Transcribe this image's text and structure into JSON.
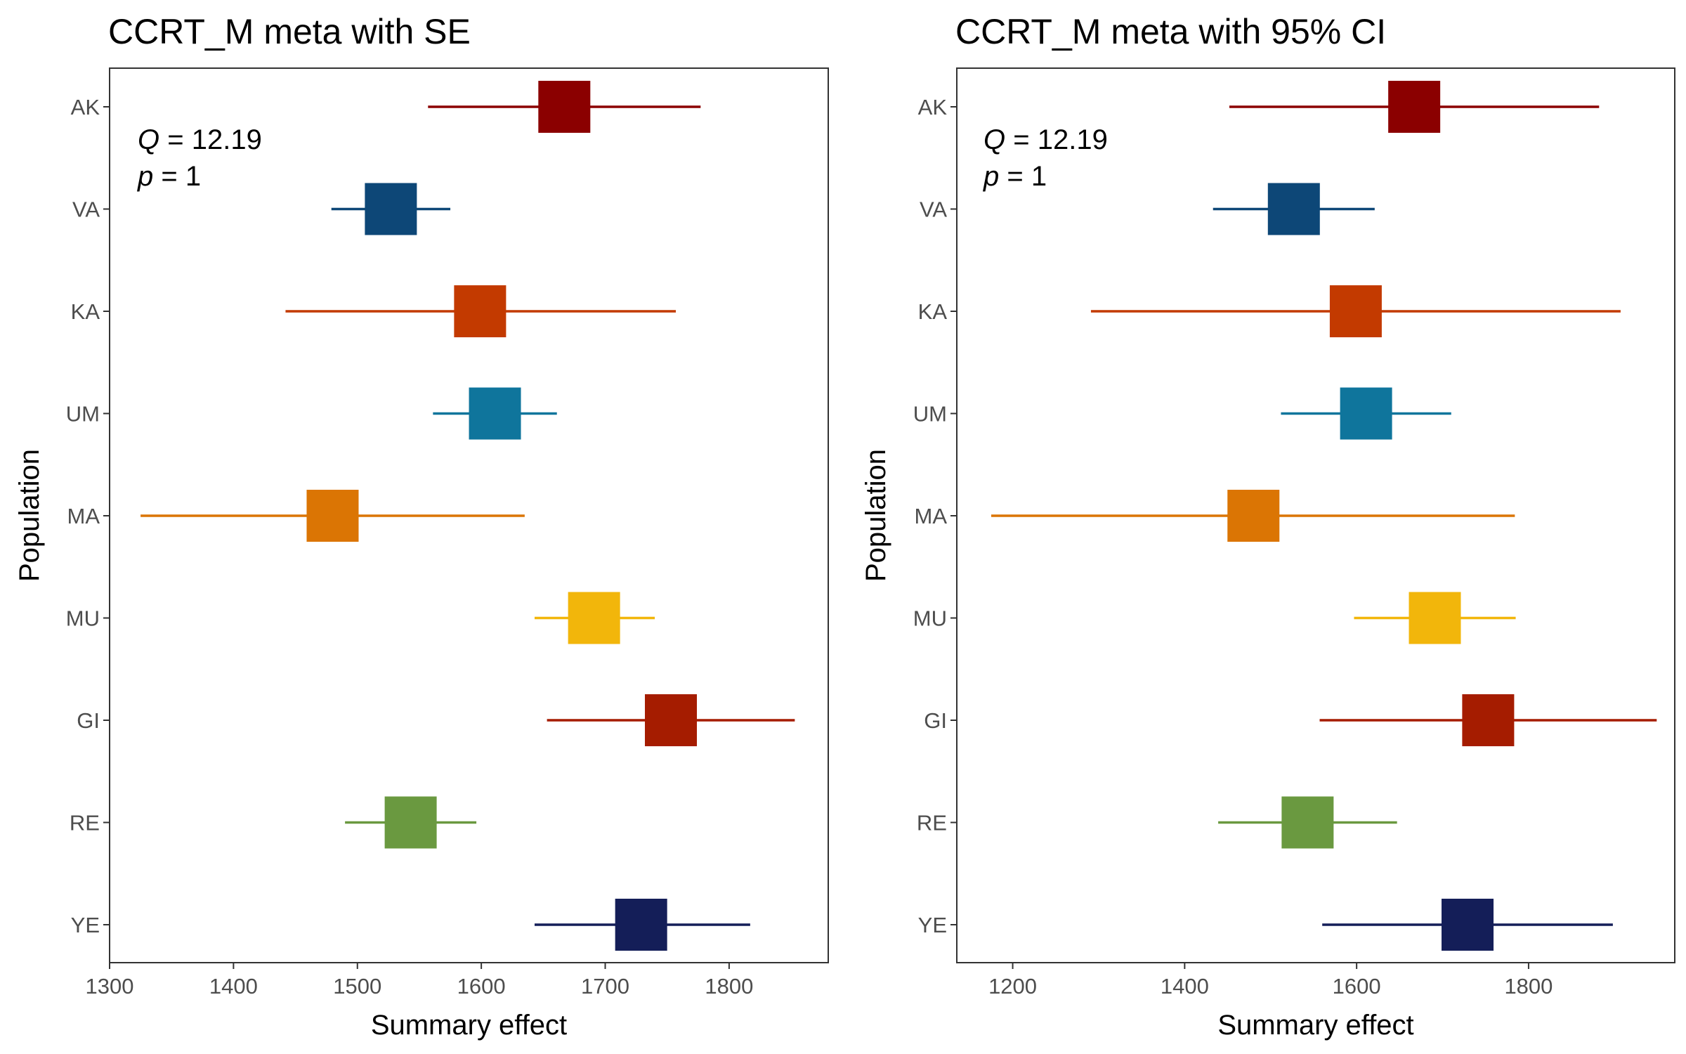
{
  "chart_data": [
    {
      "type": "forest",
      "title": "CCRT_M meta with SE",
      "xlabel": "Summary effect",
      "ylabel": "Population",
      "xlim": [
        1300,
        1880
      ],
      "xticks": [
        1300,
        1400,
        1500,
        1600,
        1700,
        1800
      ],
      "grid": false,
      "annotation": {
        "q_symbol": "Q",
        "q_value": "= 12.19",
        "p_symbol": "p",
        "p_value": "= 1"
      },
      "categories": [
        "AK",
        "VA",
        "KA",
        "UM",
        "MA",
        "MU",
        "GI",
        "RE",
        "YE"
      ],
      "estimate": [
        1667,
        1527,
        1599,
        1611,
        1480,
        1691,
        1753,
        1543,
        1729
      ],
      "lower": [
        1557,
        1479,
        1442,
        1561,
        1325,
        1643,
        1653,
        1490,
        1643
      ],
      "upper": [
        1777,
        1575,
        1757,
        1661,
        1635,
        1740,
        1853,
        1596,
        1817
      ],
      "colors": [
        "#8b0000",
        "#0d4777",
        "#c33a00",
        "#0f759c",
        "#db7504",
        "#f2b60b",
        "#a51c00",
        "#6a9940",
        "#141e58"
      ]
    },
    {
      "type": "forest",
      "title": "CCRT_M meta with 95% CI",
      "xlabel": "Summary effect",
      "ylabel": "Population",
      "xlim": [
        1135,
        1970
      ],
      "xticks": [
        1200,
        1400,
        1600,
        1800
      ],
      "grid": false,
      "annotation": {
        "q_symbol": "Q",
        "q_value": "= 12.19",
        "p_symbol": "p",
        "p_value": "= 1"
      },
      "categories": [
        "AK",
        "VA",
        "KA",
        "UM",
        "MA",
        "MU",
        "GI",
        "RE",
        "YE"
      ],
      "estimate": [
        1667,
        1527,
        1599,
        1611,
        1480,
        1691,
        1753,
        1543,
        1729
      ],
      "lower": [
        1452,
        1433,
        1291,
        1512,
        1175,
        1597,
        1557,
        1439,
        1560
      ],
      "upper": [
        1882,
        1621,
        1907,
        1710,
        1784,
        1785,
        1949,
        1647,
        1898
      ],
      "colors": [
        "#8b0000",
        "#0d4777",
        "#c33a00",
        "#0f759c",
        "#db7504",
        "#f2b60b",
        "#a51c00",
        "#6a9940",
        "#141e58"
      ]
    }
  ]
}
